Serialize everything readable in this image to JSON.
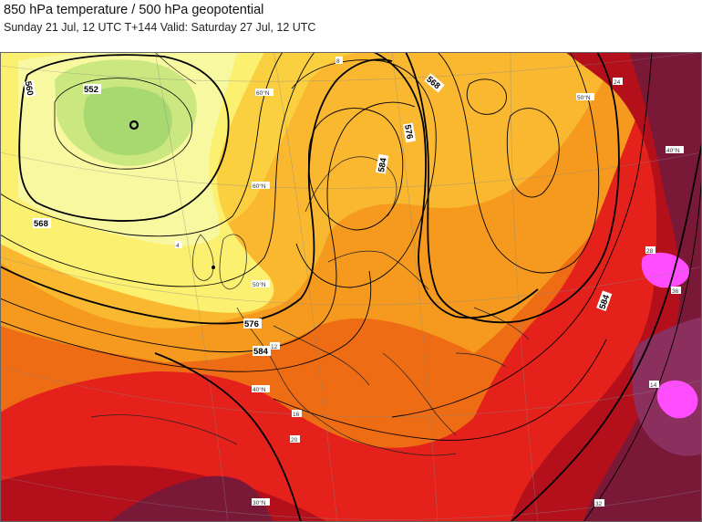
{
  "header": {
    "title": "850 hPa temperature / 500 hPa geopotential",
    "subtitle": "Sunday 21 Jul, 12 UTC T+144 Valid: Saturday 27 Jul, 12 UTC"
  },
  "map": {
    "contour_labels": {
      "c560": "560",
      "c552": "552",
      "c568_west": "568",
      "c568_north": "568",
      "c576_centre": "576",
      "c576_north": "576",
      "c584_centre": "584",
      "c584_north": "584",
      "c584_east": "584"
    },
    "temperature_labels": {
      "t24": "24",
      "t28": "28",
      "t36": "36",
      "t16": "16",
      "t12": "12",
      "t20": "20",
      "t14": "14",
      "t4": "4",
      "t8": "8",
      "t32": "32"
    },
    "latitude_labels": {
      "lat30": "30°N",
      "lat40a": "40°N",
      "lat40b": "40°N",
      "lat50a": "50°N",
      "lat50b": "50°N",
      "lat60": "60°N",
      "lat60b": "60°N"
    },
    "colors": {
      "light_green": "#a8d870",
      "pale_green": "#cbe77f",
      "pale_yellow": "#f8f8a0",
      "yellow": "#fbf070",
      "yellow_orange": "#fbd040",
      "light_orange": "#f9b830",
      "orange": "#f59a1f",
      "dark_orange": "#ee6c14",
      "red": "#e4211a",
      "dark_red": "#b3101c",
      "maroon": "#7a1838",
      "purple_maroon": "#8a2f5e",
      "magenta": "#ff4dff"
    }
  }
}
